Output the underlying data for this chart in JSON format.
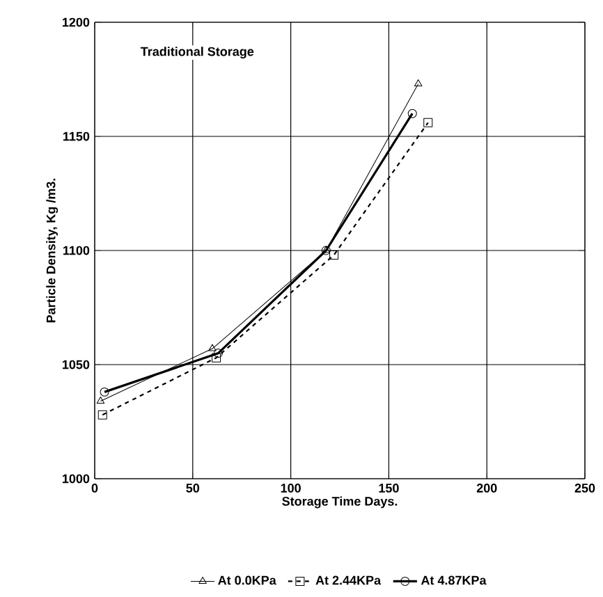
{
  "chart_data": {
    "type": "line",
    "xlabel": "Storage Time Days.",
    "ylabel": "Particle Density, Kg /m3.",
    "annotations": [
      "Traditional Storage"
    ],
    "xlim": [
      0,
      250
    ],
    "ylim": [
      1000,
      1200
    ],
    "xticks": [
      0,
      50,
      100,
      150,
      200,
      250
    ],
    "yticks": [
      1000,
      1050,
      1100,
      1150,
      1200
    ],
    "grid": true,
    "legend": "bottom",
    "series": [
      {
        "name": "At 0.0KPa",
        "color": "#000000",
        "marker": "triangle",
        "line_style": "solid",
        "x": [
          3,
          60,
          118,
          165
        ],
        "values": [
          1034,
          1057,
          1100,
          1173
        ]
      },
      {
        "name": "At 2.44KPa",
        "color": "#000000",
        "marker": "square",
        "line_style": "dashed",
        "x": [
          4,
          62,
          122,
          170
        ],
        "values": [
          1028,
          1053,
          1098,
          1156
        ]
      },
      {
        "name": "At 4.87KPa",
        "color": "#000000",
        "marker": "circle",
        "line_style": "solid",
        "x": [
          5,
          63,
          118,
          162
        ],
        "values": [
          1038,
          1055,
          1100,
          1160
        ]
      }
    ]
  }
}
